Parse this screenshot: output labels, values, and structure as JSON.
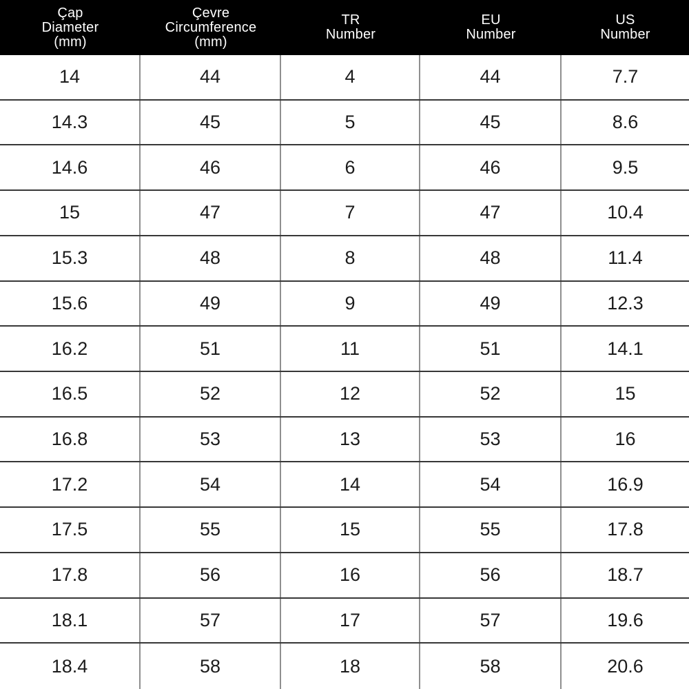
{
  "table": {
    "title": "ring-size-conversion-chart",
    "columns": [
      {
        "id": "diameter",
        "label_lines": [
          "Çap",
          "Diameter",
          "(mm)"
        ]
      },
      {
        "id": "circumference",
        "label_lines": [
          "Çevre",
          "Circumference",
          "(mm)"
        ]
      },
      {
        "id": "tr",
        "label_lines": [
          "TR",
          "Number"
        ]
      },
      {
        "id": "eu",
        "label_lines": [
          "EU",
          "Number"
        ]
      },
      {
        "id": "us",
        "label_lines": [
          "US",
          "Number"
        ]
      }
    ],
    "rows": [
      [
        "14",
        "44",
        "4",
        "44",
        "7.7"
      ],
      [
        "14.3",
        "45",
        "5",
        "45",
        "8.6"
      ],
      [
        "14.6",
        "46",
        "6",
        "46",
        "9.5"
      ],
      [
        "15",
        "47",
        "7",
        "47",
        "10.4"
      ],
      [
        "15.3",
        "48",
        "8",
        "48",
        "11.4"
      ],
      [
        "15.6",
        "49",
        "9",
        "49",
        "12.3"
      ],
      [
        "16.2",
        "51",
        "11",
        "51",
        "14.1"
      ],
      [
        "16.5",
        "52",
        "12",
        "52",
        "15"
      ],
      [
        "16.8",
        "53",
        "13",
        "53",
        "16"
      ],
      [
        "17.2",
        "54",
        "14",
        "54",
        "16.9"
      ],
      [
        "17.5",
        "55",
        "15",
        "55",
        "17.8"
      ],
      [
        "17.8",
        "56",
        "16",
        "56",
        "18.7"
      ],
      [
        "18.1",
        "57",
        "17",
        "57",
        "19.6"
      ],
      [
        "18.4",
        "58",
        "18",
        "58",
        "20.6"
      ]
    ]
  },
  "colors": {
    "header_bg": "#000000",
    "header_text": "#ffffff",
    "body_bg": "#ffffff",
    "body_text": "#1c1c1c",
    "row_line": "#373737",
    "column_line": "#8f8f8f"
  }
}
